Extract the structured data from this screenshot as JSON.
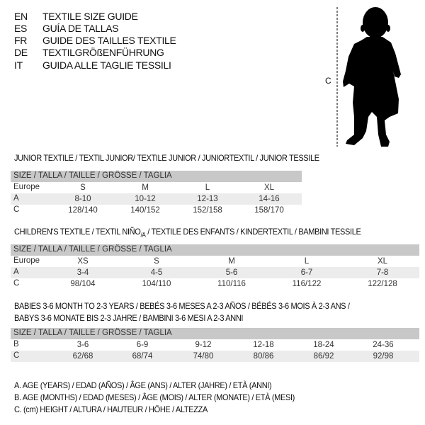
{
  "languages": [
    {
      "code": "EN",
      "title": "TEXTILE SIZE GUIDE"
    },
    {
      "code": "ES",
      "title": "GUÍA DE TALLAS"
    },
    {
      "code": "FR",
      "title": "GUIDE DES TAILLES TEXTILE"
    },
    {
      "code": "DE",
      "title": "TEXTILGRÖßENFÜHRUNG"
    },
    {
      "code": "IT",
      "title": "GUIDA ALLE TAGLIE TESSILI"
    }
  ],
  "figure": {
    "measure_label": "C",
    "icon": "toddler-silhouette"
  },
  "size_header": "SIZE / TALLA / TAILLE / GRÖSSE / TAGLIA",
  "junior": {
    "title": "JUNIOR TEXTILE / TEXTIL JUNIOR/ TEXTILE JUNIOR / JUNIORTEXTIL / JUNIOR TESSILE",
    "rows": [
      {
        "label": "Europe",
        "values": [
          "S",
          "M",
          "L",
          "XL"
        ]
      },
      {
        "label": "A",
        "values": [
          "8-10",
          "10-12",
          "12-13",
          "14-16"
        ]
      },
      {
        "label": "C",
        "values": [
          "128/140",
          "140/152",
          "152/158",
          "158/170"
        ]
      }
    ]
  },
  "children": {
    "title_a": "CHILDREN'S TEXTILE / TEXTIL NIÑO",
    "title_sub": "/A",
    "title_b": " / TEXTILE DES ENFANTS / KINDERTEXTIL / BAMBINI TESSILE",
    "rows": [
      {
        "label": "Europe",
        "values": [
          "XS",
          "S",
          "M",
          "L",
          "XL"
        ]
      },
      {
        "label": "A",
        "values": [
          "3-4",
          "4-5",
          "5-6",
          "6-7",
          "7-8"
        ]
      },
      {
        "label": "C",
        "values": [
          "98/104",
          "104/110",
          "110/116",
          "116/122",
          "122/128"
        ]
      }
    ]
  },
  "babies": {
    "title_line1": "BABIES 3-6 MONTH TO 2-3 YEARS / BEBÉS 3-6 MESES A 2-3 AÑOS / BÉBÉS 3-6 MOIS À 2-3 ANS /",
    "title_line2": "BABYS 3-6 MONATE BIS 2-3 JAHRE / BAMBINI 3-6 MESI A 2-3 ANNI",
    "rows": [
      {
        "label": "B",
        "values": [
          "3-6",
          "6-9",
          "9-12",
          "12-18",
          "18-24",
          "24-36"
        ]
      },
      {
        "label": "C",
        "values": [
          "62/68",
          "68/74",
          "74/80",
          "80/86",
          "86/92",
          "92/98"
        ]
      }
    ]
  },
  "legend": [
    "A. AGE (YEARS) / EDAD (AÑOS) / ÂGE (ANS) / ALTER (JAHRE) / ETÀ (ANNI)",
    "B. AGE (MONTHS) / EDAD (MESES) / ÂGE (MOIS) / ALTER (MONATE) / ETÀ (MESI)",
    "C. (cm) HEIGHT / ALTURA / HAUTEUR / HÖHE / ALTEZZA"
  ]
}
